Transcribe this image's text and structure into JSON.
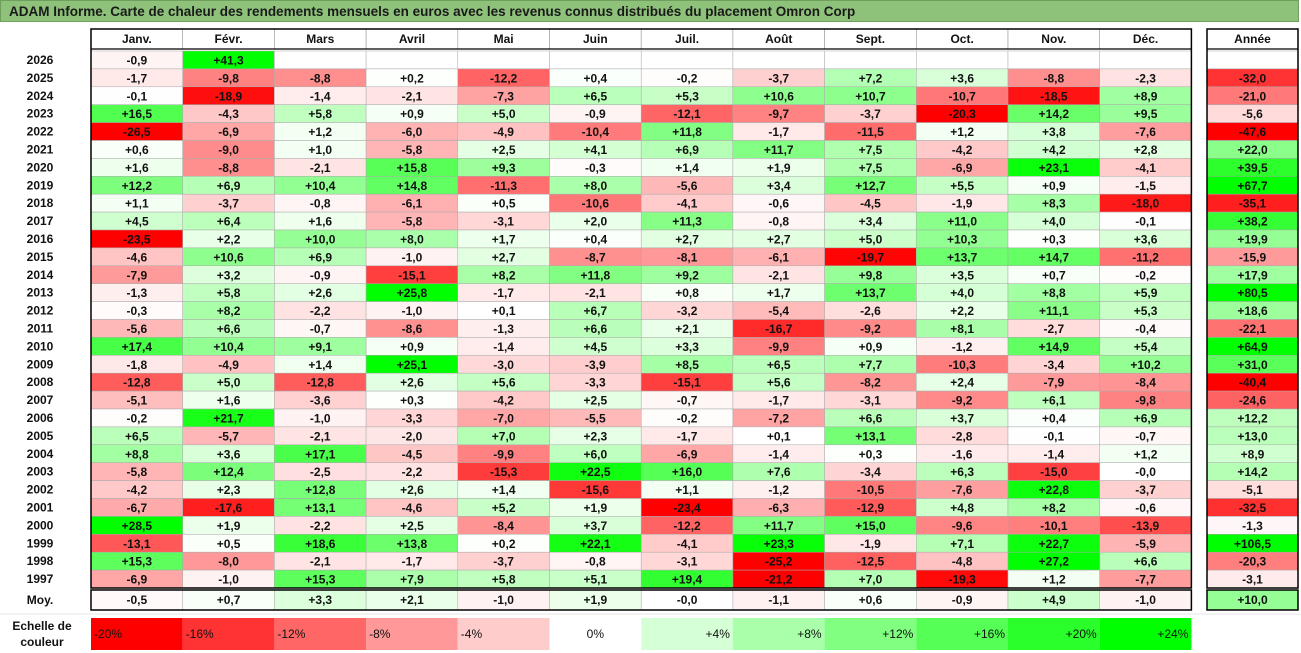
{
  "title": "ADAM Informe. Carte de chaleur des rendements mensuels en euros avec les revenus connus distribués du placement Omron Corp",
  "colors": {
    "title_bg": "#8ec27a",
    "negative_max": "#ff0000",
    "neutral": "#ffffff",
    "positive_max": "#00ff00",
    "grid_line": "#000000"
  },
  "chart_data": {
    "type": "heatmap",
    "months": [
      "Janv.",
      "Févr.",
      "Mars",
      "Avril",
      "Mai",
      "Juin",
      "Juil.",
      "Août",
      "Sept.",
      "Oct.",
      "Nov.",
      "Déc."
    ],
    "annual_header": "Année",
    "avg_label": "Moy.",
    "color_scale_label": [
      "Echelle de",
      "couleur"
    ],
    "color_scale_min": -20,
    "color_scale_max": 24,
    "rows": [
      {
        "year": "2026",
        "values": [
          "-0,9",
          "+41,3",
          null,
          null,
          null,
          null,
          null,
          null,
          null,
          null,
          null,
          null
        ],
        "annual": null
      },
      {
        "year": "2025",
        "values": [
          "-1,7",
          "-9,8",
          "-8,8",
          "+0,2",
          "-12,2",
          "+0,4",
          "-0,2",
          "-3,7",
          "+7,2",
          "+3,6",
          "-8,8",
          "-2,3"
        ],
        "annual": "-32,0"
      },
      {
        "year": "2024",
        "values": [
          "-0,1",
          "-18,9",
          "-1,4",
          "-2,1",
          "-7,3",
          "+6,5",
          "+5,3",
          "+10,6",
          "+10,7",
          "-10,7",
          "-18,5",
          "+8,9"
        ],
        "annual": "-21,0"
      },
      {
        "year": "2023",
        "values": [
          "+16,5",
          "-4,3",
          "+5,8",
          "+0,9",
          "+5,0",
          "-0,9",
          "-12,1",
          "-9,7",
          "-3,7",
          "-20,3",
          "+14,2",
          "+9,5"
        ],
        "annual": "-5,6"
      },
      {
        "year": "2022",
        "values": [
          "-26,5",
          "-6,9",
          "+1,2",
          "-6,0",
          "-4,9",
          "-10,4",
          "+11,8",
          "-1,7",
          "-11,5",
          "+1,2",
          "+3,8",
          "-7,6"
        ],
        "annual": "-47,6"
      },
      {
        "year": "2021",
        "values": [
          "+0,6",
          "-9,0",
          "+1,0",
          "-5,8",
          "+2,5",
          "+4,1",
          "+6,9",
          "+11,7",
          "+7,5",
          "-4,2",
          "+4,2",
          "+2,8"
        ],
        "annual": "+22,0"
      },
      {
        "year": "2020",
        "values": [
          "+1,6",
          "-8,8",
          "-2,1",
          "+15,8",
          "+9,3",
          "-0,3",
          "+1,4",
          "+1,9",
          "+7,5",
          "-6,9",
          "+23,1",
          "-4,1"
        ],
        "annual": "+39,5"
      },
      {
        "year": "2019",
        "values": [
          "+12,2",
          "+6,9",
          "+10,4",
          "+14,8",
          "-11,3",
          "+8,0",
          "-5,6",
          "+3,4",
          "+12,7",
          "+5,5",
          "+0,9",
          "-1,5"
        ],
        "annual": "+67,7"
      },
      {
        "year": "2018",
        "values": [
          "+1,1",
          "-3,7",
          "-0,8",
          "-6,1",
          "+0,5",
          "-10,6",
          "-4,1",
          "-0,6",
          "-4,5",
          "-1,9",
          "+8,3",
          "-18,0"
        ],
        "annual": "-35,1"
      },
      {
        "year": "2017",
        "values": [
          "+4,5",
          "+6,4",
          "+1,6",
          "-5,8",
          "-3,1",
          "+2,0",
          "+11,3",
          "-0,8",
          "+3,4",
          "+11,0",
          "+4,0",
          "-0,1"
        ],
        "annual": "+38,2"
      },
      {
        "year": "2016",
        "values": [
          "-23,5",
          "+2,2",
          "+10,0",
          "+8,0",
          "+1,7",
          "+0,4",
          "+2,7",
          "+2,7",
          "+5,0",
          "+10,3",
          "+0,3",
          "+3,6"
        ],
        "annual": "+19,9"
      },
      {
        "year": "2015",
        "values": [
          "-4,6",
          "+10,6",
          "+6,9",
          "-1,0",
          "+2,7",
          "-8,7",
          "-8,1",
          "-6,1",
          "-19,7",
          "+13,7",
          "+14,7",
          "-11,2"
        ],
        "annual": "-15,9"
      },
      {
        "year": "2014",
        "values": [
          "-7,9",
          "+3,2",
          "-0,9",
          "-15,1",
          "+8,2",
          "+11,8",
          "+9,2",
          "-2,1",
          "+9,8",
          "+3,5",
          "+0,7",
          "-0,2"
        ],
        "annual": "+17,9"
      },
      {
        "year": "2013",
        "values": [
          "-1,3",
          "+5,8",
          "+2,6",
          "+25,8",
          "-1,7",
          "-2,1",
          "+0,8",
          "+1,7",
          "+13,7",
          "+4,0",
          "+8,8",
          "+5,9"
        ],
        "annual": "+80,5"
      },
      {
        "year": "2012",
        "values": [
          "-0,3",
          "+8,2",
          "-2,2",
          "-1,0",
          "+0,1",
          "+6,7",
          "-3,2",
          "-5,4",
          "-2,6",
          "+2,2",
          "+11,1",
          "+5,3"
        ],
        "annual": "+18,6"
      },
      {
        "year": "2011",
        "values": [
          "-5,6",
          "+6,6",
          "-0,7",
          "-8,6",
          "-1,3",
          "+6,6",
          "+2,1",
          "-16,7",
          "-9,2",
          "+8,1",
          "-2,7",
          "-0,4"
        ],
        "annual": "-22,1"
      },
      {
        "year": "2010",
        "values": [
          "+17,4",
          "+10,4",
          "+9,1",
          "+0,9",
          "-1,4",
          "+4,5",
          "+3,3",
          "-9,9",
          "+0,9",
          "-1,2",
          "+14,9",
          "+5,4"
        ],
        "annual": "+64,9"
      },
      {
        "year": "2009",
        "values": [
          "-1,8",
          "-4,9",
          "+1,4",
          "+25,1",
          "-3,0",
          "-3,9",
          "+8,5",
          "+6,5",
          "+7,7",
          "-10,3",
          "-3,4",
          "+10,2"
        ],
        "annual": "+31,0"
      },
      {
        "year": "2008",
        "values": [
          "-12,8",
          "+5,0",
          "-12,8",
          "+2,6",
          "+5,6",
          "-3,3",
          "-15,1",
          "+5,6",
          "-8,2",
          "+2,4",
          "-7,9",
          "-8,4"
        ],
        "annual": "-40,4"
      },
      {
        "year": "2007",
        "values": [
          "-5,1",
          "+1,6",
          "-3,6",
          "+0,3",
          "-4,2",
          "+2,5",
          "-0,7",
          "-1,7",
          "-3,1",
          "-9,2",
          "+6,1",
          "-9,8"
        ],
        "annual": "-24,6"
      },
      {
        "year": "2006",
        "values": [
          "-0,2",
          "+21,7",
          "-1,0",
          "-3,3",
          "-7,0",
          "-5,5",
          "-0,2",
          "-7,2",
          "+6,6",
          "+3,7",
          "+0,4",
          "+6,9"
        ],
        "annual": "+12,2"
      },
      {
        "year": "2005",
        "values": [
          "+6,5",
          "-5,7",
          "-2,1",
          "-2,0",
          "+7,0",
          "+2,3",
          "-1,7",
          "+0,1",
          "+13,1",
          "-2,8",
          "-0,1",
          "-0,7"
        ],
        "annual": "+13,0"
      },
      {
        "year": "2004",
        "values": [
          "+8,8",
          "+3,6",
          "+17,1",
          "-4,5",
          "-9,9",
          "+6,0",
          "-6,9",
          "-1,4",
          "+0,3",
          "-1,6",
          "-1,4",
          "+1,2"
        ],
        "annual": "+8,9"
      },
      {
        "year": "2003",
        "values": [
          "-5,8",
          "+12,4",
          "-2,5",
          "-2,2",
          "-15,3",
          "+22,5",
          "+16,0",
          "+7,6",
          "-3,4",
          "+6,3",
          "-15,0",
          "-0,0"
        ],
        "annual": "+14,2"
      },
      {
        "year": "2002",
        "values": [
          "-4,2",
          "+2,3",
          "+12,8",
          "+2,6",
          "+1,4",
          "-15,6",
          "+1,1",
          "-1,2",
          "-10,5",
          "-7,6",
          "+22,8",
          "-3,7"
        ],
        "annual": "-5,1"
      },
      {
        "year": "2001",
        "values": [
          "-6,7",
          "-17,6",
          "+13,1",
          "-4,6",
          "+5,2",
          "+1,9",
          "-23,4",
          "-6,3",
          "-12,9",
          "+4,8",
          "+8,2",
          "-0,6"
        ],
        "annual": "-32,5"
      },
      {
        "year": "2000",
        "values": [
          "+28,5",
          "+1,9",
          "-2,2",
          "+2,5",
          "-8,4",
          "+3,7",
          "-12,2",
          "+11,7",
          "+15,0",
          "-9,6",
          "-10,1",
          "-13,9"
        ],
        "annual": "-1,3"
      },
      {
        "year": "1999",
        "values": [
          "-13,1",
          "+0,5",
          "+18,6",
          "+13,8",
          "+0,2",
          "+22,1",
          "-4,1",
          "+23,3",
          "-1,9",
          "+7,1",
          "+22,7",
          "-5,9"
        ],
        "annual": "+106,5"
      },
      {
        "year": "1998",
        "values": [
          "+15,3",
          "-8,0",
          "-2,1",
          "-1,7",
          "-3,7",
          "-0,8",
          "-3,1",
          "-25,2",
          "-12,5",
          "-4,8",
          "+27,2",
          "+6,6"
        ],
        "annual": "-20,3"
      },
      {
        "year": "1997",
        "values": [
          "-6,9",
          "-1,0",
          "+15,3",
          "+7,9",
          "+5,8",
          "+5,1",
          "+19,4",
          "-21,2",
          "+7,0",
          "-19,3",
          "+1,2",
          "-7,7"
        ],
        "annual": "-3,1"
      }
    ],
    "averages": [
      "-0,5",
      "+0,7",
      "+3,3",
      "+2,1",
      "-1,0",
      "+1,9",
      "-0,0",
      "-1,1",
      "+0,6",
      "-0,9",
      "+4,9",
      "-1,0"
    ],
    "annual_average": "+10,0",
    "legend": [
      "-20%",
      "-16%",
      "-12%",
      "-8%",
      "-4%",
      "0%",
      "+4%",
      "+8%",
      "+12%",
      "+16%",
      "+20%",
      "+24%"
    ]
  }
}
